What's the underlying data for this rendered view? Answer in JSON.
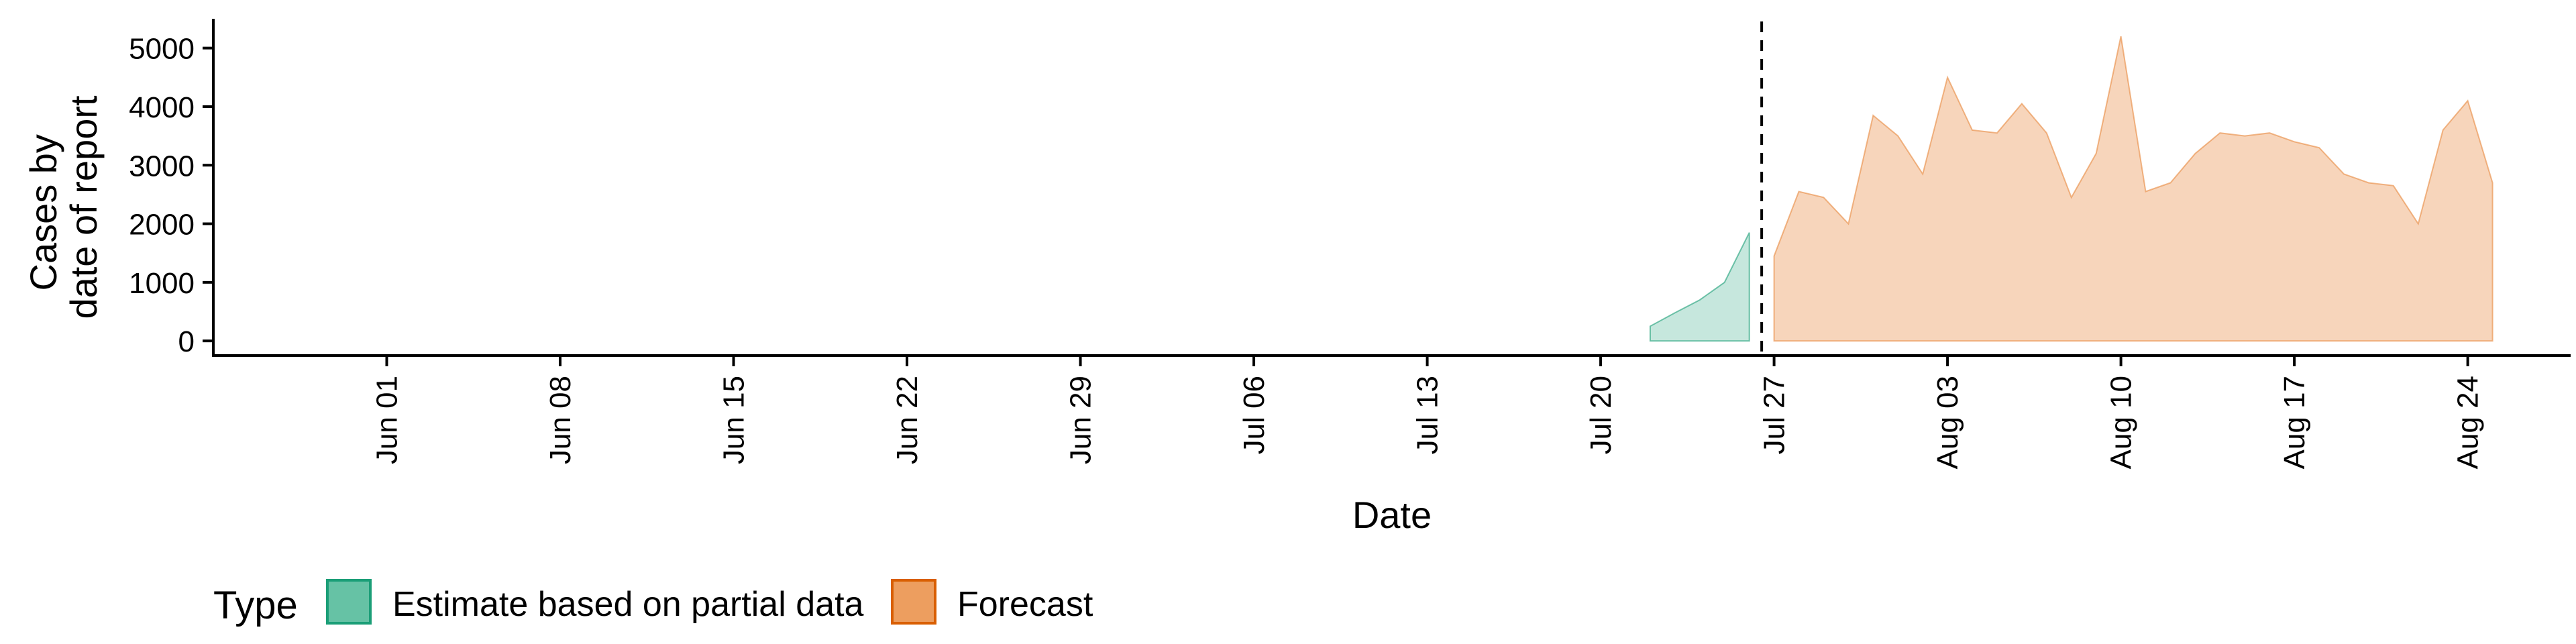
{
  "colors": {
    "estimate_fill": "#1B9E77",
    "forecast_fill": "#E7883D",
    "estimate_legend_fill": "#66C2A5",
    "estimate_legend_stroke": "#1B9E77",
    "forecast_legend_fill": "#ED9E5F",
    "forecast_legend_stroke": "#D95F02"
  },
  "chart_data": {
    "type": "area",
    "xlabel": "Date",
    "ylabel": [
      "Cases by",
      "date of report"
    ],
    "ylim": [
      -250,
      5500
    ],
    "y_ticks": [
      0,
      1000,
      2000,
      3000,
      4000,
      5000
    ],
    "x_range": [
      "2020-05-25",
      "2020-08-31"
    ],
    "x_ticks": [
      {
        "date": "2020-06-01",
        "label": "Jun 01"
      },
      {
        "date": "2020-06-08",
        "label": "Jun 08"
      },
      {
        "date": "2020-06-15",
        "label": "Jun 15"
      },
      {
        "date": "2020-06-22",
        "label": "Jun 22"
      },
      {
        "date": "2020-06-29",
        "label": "Jun 29"
      },
      {
        "date": "2020-07-06",
        "label": "Jul 06"
      },
      {
        "date": "2020-07-13",
        "label": "Jul 13"
      },
      {
        "date": "2020-07-20",
        "label": "Jul 20"
      },
      {
        "date": "2020-07-27",
        "label": "Jul 27"
      },
      {
        "date": "2020-08-03",
        "label": "Aug 03"
      },
      {
        "date": "2020-08-10",
        "label": "Aug 10"
      },
      {
        "date": "2020-08-17",
        "label": "Aug 17"
      },
      {
        "date": "2020-08-24",
        "label": "Aug 24"
      }
    ],
    "vline_date": "2020-07-26",
    "grid": false,
    "legend_position": "bottom-left",
    "legend_title": "Type",
    "series": [
      {
        "name": "Estimate based on partial data",
        "color": "#1B9E77",
        "x": [
          "2020-07-22",
          "2020-07-23",
          "2020-07-24",
          "2020-07-25",
          "2020-07-26"
        ],
        "y": [
          250,
          480,
          700,
          1000,
          1850
        ]
      },
      {
        "name": "Forecast",
        "color": "#E7883D",
        "x": [
          "2020-07-27",
          "2020-07-28",
          "2020-07-29",
          "2020-07-30",
          "2020-07-31",
          "2020-08-01",
          "2020-08-02",
          "2020-08-03",
          "2020-08-04",
          "2020-08-05",
          "2020-08-06",
          "2020-08-07",
          "2020-08-08",
          "2020-08-09",
          "2020-08-10",
          "2020-08-11",
          "2020-08-12",
          "2020-08-13",
          "2020-08-14",
          "2020-08-15",
          "2020-08-16",
          "2020-08-17",
          "2020-08-18",
          "2020-08-19",
          "2020-08-20",
          "2020-08-21",
          "2020-08-22",
          "2020-08-23",
          "2020-08-24",
          "2020-08-25"
        ],
        "y": [
          1450,
          2550,
          2450,
          2000,
          3850,
          3500,
          2850,
          4500,
          3600,
          3550,
          4050,
          3550,
          2450,
          3200,
          5200,
          2550,
          2700,
          3200,
          3550,
          3500,
          3550,
          3400,
          3300,
          2850,
          2700,
          2650,
          2000,
          3600,
          4100,
          2700
        ]
      }
    ]
  },
  "legend": {
    "title": "Type",
    "items": [
      {
        "label": "Estimate based on partial data",
        "name": "legend-item-estimate"
      },
      {
        "label": "Forecast",
        "name": "legend-item-forecast"
      }
    ]
  }
}
